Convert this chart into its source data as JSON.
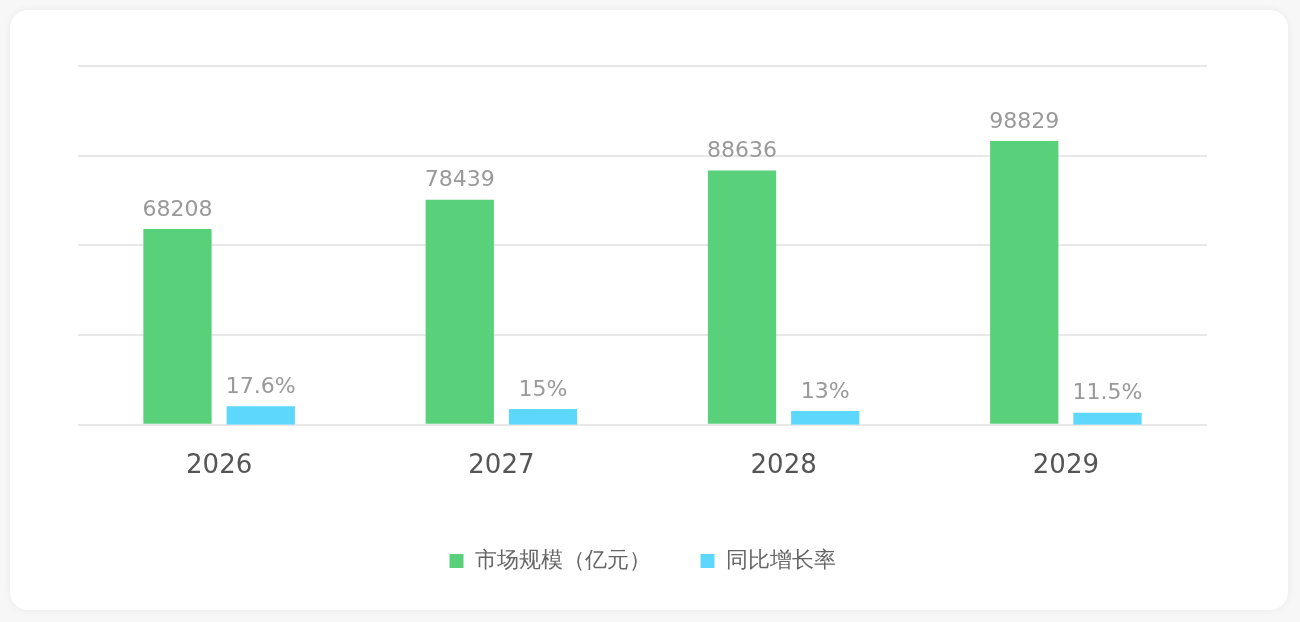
{
  "chart_data": {
    "type": "bar",
    "categories": [
      "2026",
      "2027",
      "2028",
      "2029"
    ],
    "series": [
      {
        "name": "市场规模（亿元）",
        "color": "#59d17a",
        "values": [
          68208,
          78439,
          88636,
          98829
        ],
        "value_labels": [
          "68208",
          "78439",
          "88636",
          "98829"
        ]
      },
      {
        "name": "同比增长率",
        "color": "#5dd8fc",
        "values": [
          17.6,
          15,
          13,
          11.5
        ],
        "axis": "y2",
        "value_labels": [
          "17.6%",
          "15%",
          "13%",
          "11.5%"
        ]
      }
    ],
    "ylim": [
      0,
      125000
    ],
    "yticks": [
      {
        "value": 0,
        "label": null
      },
      {
        "value": 31250,
        "label": null
      },
      {
        "value": 62500,
        "label": null
      },
      {
        "value": 93750,
        "label": null
      },
      {
        "value": 125000,
        "label": null
      }
    ],
    "y2lim": [
      0,
      340
    ],
    "grid": "y",
    "legend": "bottom",
    "tick_labels": "x"
  }
}
